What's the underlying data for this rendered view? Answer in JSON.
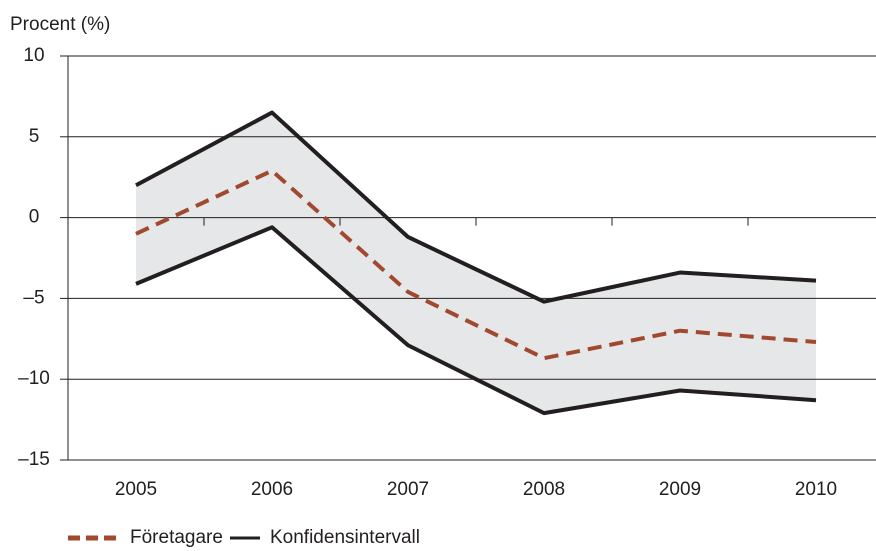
{
  "chart_data": {
    "type": "line",
    "y_label": "Procent (%)",
    "categories": [
      "2005",
      "2006",
      "2007",
      "2008",
      "2009",
      "2010"
    ],
    "series": [
      {
        "name": "Företagare",
        "color": "#a0492f",
        "dashed": true,
        "values": [
          -1.0,
          2.9,
          -4.6,
          -8.7,
          -7.0,
          -7.7
        ]
      }
    ],
    "confidence_band": {
      "name": "Konfidensintervall",
      "color": "#231f20",
      "fill": "#e6e7e8",
      "upper": [
        2.0,
        6.5,
        -1.2,
        -5.2,
        -3.4,
        -3.9
      ],
      "lower": [
        -4.1,
        -0.6,
        -7.9,
        -12.1,
        -10.7,
        -11.3
      ]
    },
    "ylim": [
      -15,
      10
    ],
    "yticks": [
      {
        "value": -15,
        "label": "–15"
      },
      {
        "value": -10,
        "label": "–10"
      },
      {
        "value": -5,
        "label": "–5"
      },
      0,
      5,
      10
    ],
    "grid": true
  }
}
